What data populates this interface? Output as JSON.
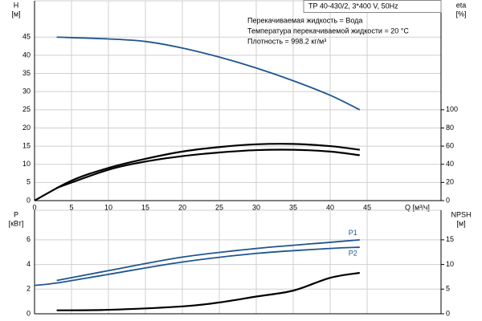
{
  "header": {
    "title": "TP 40-430/2, 3*400 V, 50Hz",
    "annotations": [
      "Перекачиваемая жидкость = Вода",
      "Температура перекачиваемой жидкости = 20 °C",
      "Плотность = 998.2 кг/м³"
    ]
  },
  "chart_data": [
    {
      "type": "line",
      "ylabel": "H",
      "yunit": "[м]",
      "y2label": "eta",
      "y2unit": "[%]",
      "xlabel": "Q [м³/ч]",
      "xlim": [
        0,
        55
      ],
      "xticks": [
        0,
        5,
        10,
        15,
        20,
        25,
        30,
        35,
        40,
        45
      ],
      "ylim": [
        0,
        55
      ],
      "yticks": [
        0,
        5,
        10,
        15,
        20,
        25,
        30,
        35,
        40,
        45
      ],
      "y2lim": [
        0,
        220
      ],
      "y2ticks": [
        0,
        20,
        40,
        60,
        80,
        100
      ],
      "grid": true,
      "series": [
        {
          "color": "#1f5590",
          "x": [
            3,
            10,
            15,
            20,
            25,
            30,
            35,
            40,
            44
          ],
          "values": [
            45,
            44.5,
            43.8,
            42,
            39.5,
            36.5,
            33,
            29,
            25
          ]
        },
        {
          "color": "#000000",
          "axis": "y2",
          "x": [
            0,
            5,
            10,
            15,
            20,
            25,
            30,
            35,
            40,
            44
          ],
          "values": [
            0,
            22,
            36,
            46,
            54,
            59,
            62,
            62.4,
            60,
            56
          ]
        },
        {
          "color": "#000000",
          "axis": "y2",
          "x": [
            3,
            10,
            15,
            20,
            25,
            30,
            35,
            40,
            44
          ],
          "values": [
            14,
            34,
            43,
            49,
            53,
            55.6,
            56,
            54,
            50
          ]
        }
      ]
    },
    {
      "type": "line",
      "ylabel": "P",
      "yunit": "[кВт]",
      "y2label": "NPSH",
      "y2unit": "[м]",
      "xlim": [
        0,
        55
      ],
      "xticks": [
        0,
        5,
        10,
        15,
        20,
        25,
        30,
        35,
        40,
        45
      ],
      "ylim": [
        0,
        8.4
      ],
      "yticks": [
        0,
        2,
        4,
        6
      ],
      "y2lim": [
        0,
        21
      ],
      "y2ticks": [
        0,
        5,
        10,
        15
      ],
      "grid": true,
      "series": [
        {
          "name": "P1",
          "color": "#1f5590",
          "x": [
            3,
            10,
            20,
            30,
            40,
            44
          ],
          "values": [
            2.7,
            3.5,
            4.6,
            5.3,
            5.8,
            6.0
          ]
        },
        {
          "name": "P2",
          "color": "#1f5590",
          "x": [
            0,
            3,
            10,
            20,
            30,
            40,
            44
          ],
          "values": [
            2.3,
            2.5,
            3.2,
            4.2,
            4.9,
            5.3,
            5.4
          ]
        },
        {
          "color": "#000000",
          "axis": "y2",
          "x": [
            3,
            10,
            20,
            25,
            30,
            35,
            40,
            44
          ],
          "values": [
            0.7,
            0.8,
            1.5,
            2.3,
            3.5,
            4.7,
            7.3,
            8.3
          ]
        }
      ]
    }
  ]
}
